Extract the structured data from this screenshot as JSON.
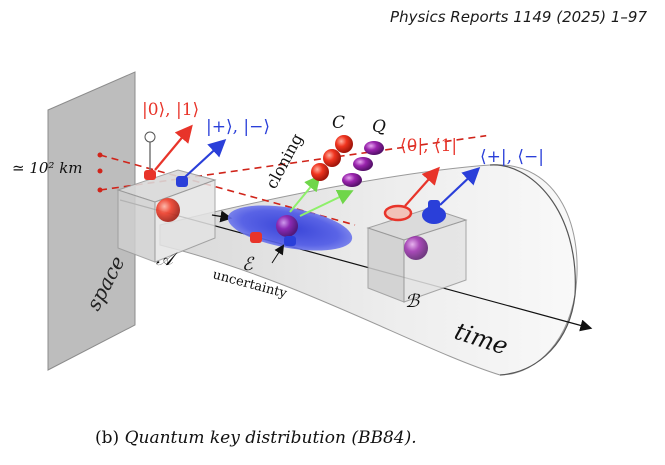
{
  "header": {
    "journal_ref": "Physics Reports 1149 (2025) 1–97"
  },
  "figure": {
    "labels": {
      "distance": "≃ 10² km",
      "space": "space",
      "time": "time",
      "node_a": "𝒜",
      "node_b": "ℬ",
      "eavesdropper": "ℰ",
      "uncertainty": "uncertainty",
      "cloning": "cloning",
      "copy_c": "C",
      "copy_q": "Q",
      "alice_z_basis": "|0⟩, |1⟩",
      "alice_x_basis": "|+⟩, |−⟩",
      "bob_z_basis": "⟨0|, ⟨1|",
      "bob_x_basis": "⟨+|, ⟨−|"
    },
    "colors": {
      "z_basis": "#e8342a",
      "x_basis": "#2a3fd9",
      "cloning_arrow": "#8ef06a",
      "cloned_q": "#8a1f9a",
      "uncertainty_cloud": "#4650e0",
      "space_plane": "#bdbdbd"
    }
  },
  "caption": {
    "tag": "(b)",
    "text": "Quantum key distribution (BB84)."
  }
}
